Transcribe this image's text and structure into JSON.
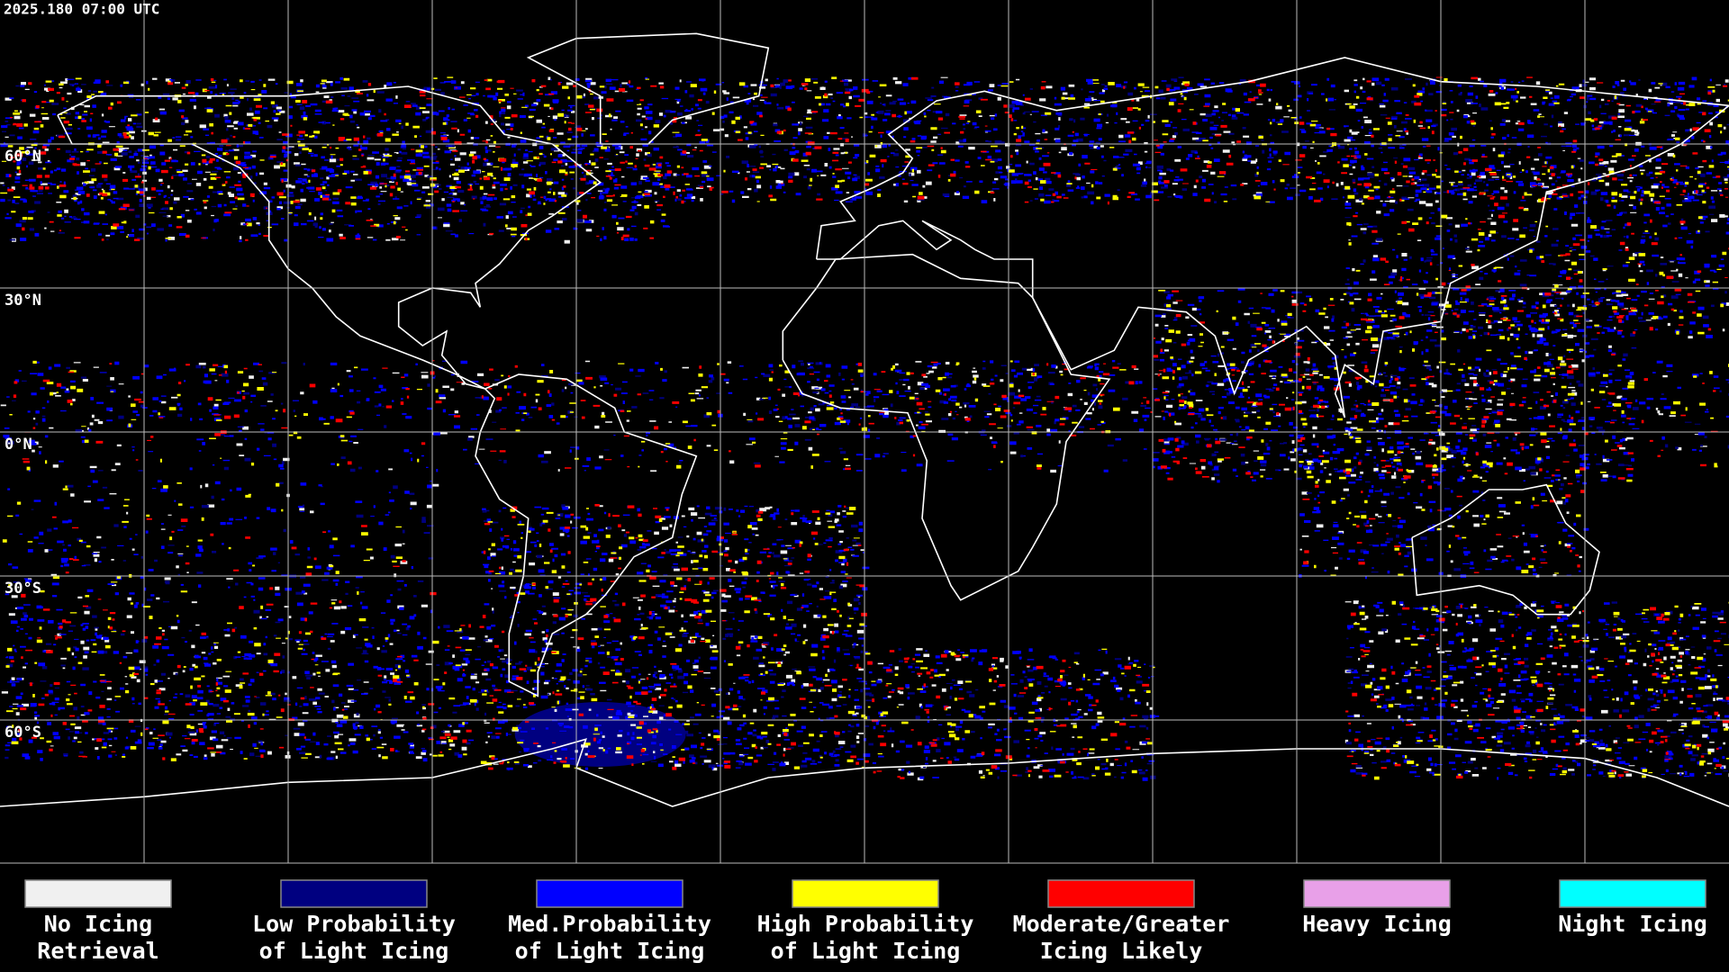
{
  "header": {
    "timestamp": "2025.180 07:00 UTC"
  },
  "map": {
    "lat_labels": [
      "60°N",
      "30°N",
      "0°N",
      "30°S",
      "60°S"
    ]
  },
  "legend": [
    {
      "lines": [
        "No Icing",
        "Retrieval"
      ],
      "color": "#f0f0f0"
    },
    {
      "lines": [
        "Low Probability",
        "of Light Icing"
      ],
      "color": "#000080"
    },
    {
      "lines": [
        "Med.Probability",
        "of Light Icing"
      ],
      "color": "#0000ff"
    },
    {
      "lines": [
        "High Probability",
        "of Light Icing"
      ],
      "color": "#ffff00"
    },
    {
      "lines": [
        "Moderate/Greater",
        "Icing Likely"
      ],
      "color": "#ff0000"
    },
    {
      "lines": [
        "Heavy Icing"
      ],
      "color": "#e8a0e8"
    },
    {
      "lines": [
        "Night Icing"
      ],
      "color": "#00ffff"
    }
  ]
}
